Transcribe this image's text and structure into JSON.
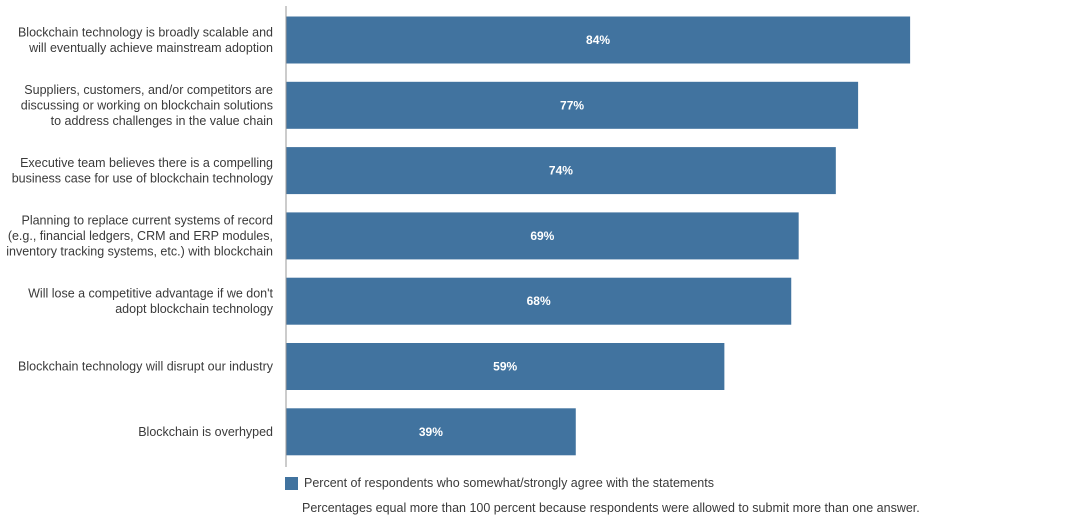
{
  "chart_data": {
    "type": "bar",
    "orientation": "horizontal",
    "categories": [
      [
        "Blockchain technology is broadly scalable and",
        "will eventually achieve mainstream adoption"
      ],
      [
        "Suppliers, customers, and/or competitors are",
        "discussing or working on blockchain solutions",
        "to address challenges in the value chain"
      ],
      [
        "Executive team believes there is a compelling",
        "business case for use of blockchain technology"
      ],
      [
        "Planning to replace current systems of record",
        "(e.g., financial ledgers, CRM and ERP modules,",
        "inventory tracking systems, etc.) with blockchain"
      ],
      [
        "Will lose a competitive advantage if we don't",
        "adopt blockchain technology"
      ],
      [
        "Blockchain technology will disrupt our industry"
      ],
      [
        "Blockchain is overhyped"
      ]
    ],
    "values": [
      84,
      77,
      74,
      69,
      68,
      59,
      39
    ],
    "data_labels": [
      "84%",
      "77%",
      "74%",
      "69%",
      "68%",
      "59%",
      "39%"
    ],
    "series": [
      {
        "name": "Percent of respondents who somewhat/strongly agree with the statements",
        "values": [
          84,
          77,
          74,
          69,
          68,
          59,
          39
        ]
      }
    ],
    "xlim": [
      0,
      100
    ],
    "grid": false,
    "legend_placement": "bottom-left",
    "bar_color": "#41739f",
    "axis_color": "#9a9a9a"
  },
  "legend": {
    "label": "Percent of respondents who somewhat/strongly agree with the statements"
  },
  "footnote": "Percentages equal more than 100 percent because respondents were allowed to submit more than one answer."
}
